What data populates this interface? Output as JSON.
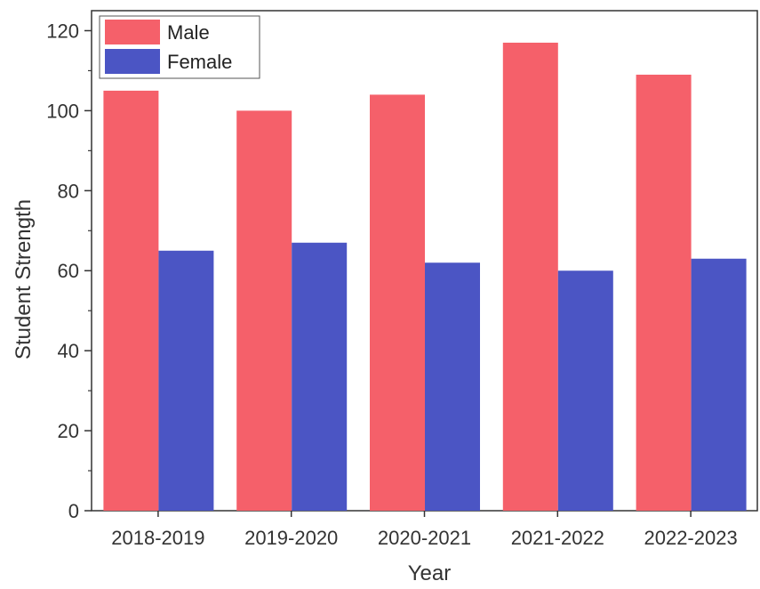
{
  "chart_data": {
    "type": "bar",
    "title": "",
    "xlabel": "Year",
    "ylabel": "Student Strength",
    "categories": [
      "2018-2019",
      "2019-2020",
      "2020-2021",
      "2021-2022",
      "2022-2023"
    ],
    "series": [
      {
        "name": "Male",
        "color": "#f5606a",
        "values": [
          105,
          100,
          104,
          117,
          109
        ]
      },
      {
        "name": "Female",
        "color": "#4b55c4",
        "values": [
          65,
          67,
          62,
          60,
          63
        ]
      }
    ],
    "ylim": [
      0,
      125
    ],
    "yticks": [
      0,
      20,
      40,
      60,
      80,
      100,
      120
    ],
    "grid": false,
    "legend_position": "top-left"
  }
}
